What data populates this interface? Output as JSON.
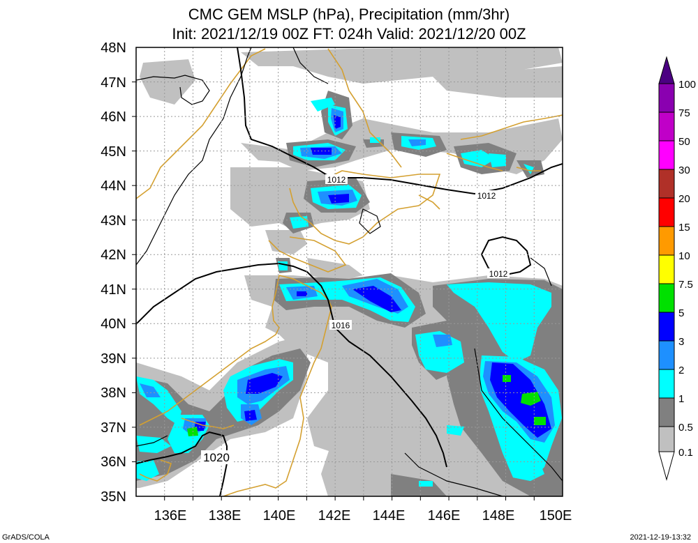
{
  "header": {
    "title_line1": "CMC GEM MSLP (hPa), Precipitation (mm/3hr)",
    "title_line2": "Init: 2021/12/19 00Z  FT: 024h  Valid: 2021/12/20 00Z"
  },
  "footer": {
    "left": "GrADS/COLA",
    "right": "2021-12-19-13:32"
  },
  "map": {
    "lat_labels": [
      "48N",
      "47N",
      "46N",
      "45N",
      "44N",
      "43N",
      "42N",
      "41N",
      "40N",
      "39N",
      "38N",
      "37N",
      "36N",
      "35N"
    ],
    "lon_labels": [
      "136E",
      "138E",
      "140E",
      "142E",
      "144E",
      "146E",
      "148E",
      "150E"
    ],
    "isobar_labels": [
      "1012",
      "1012",
      "1012",
      "1016",
      "1020"
    ],
    "grid": true
  },
  "colorbar": {
    "labels": [
      "100",
      "75",
      "50",
      "30",
      "20",
      "15",
      "10",
      "7.5",
      "5",
      "3",
      "2",
      "1",
      "0.5",
      "0.1"
    ],
    "colors": [
      "#4b0082",
      "#8a00b0",
      "#c000c8",
      "#ff00ff",
      "#b03028",
      "#ff0000",
      "#ff9a00",
      "#ffff00",
      "#00e000",
      "#0000ff",
      "#1e90ff",
      "#00ffff",
      "#808080",
      "#c0c0c0",
      "#ffffff"
    ]
  },
  "colors": {
    "coast": "#d4a030",
    "isobar": "#000000",
    "grid": "#999999"
  }
}
